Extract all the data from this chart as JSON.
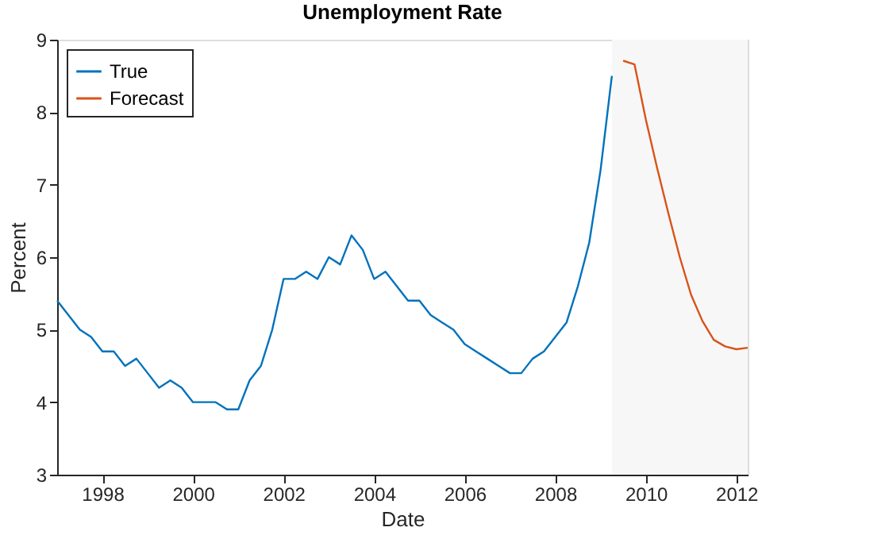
{
  "chart_data": {
    "type": "line",
    "title": "Unemployment Rate",
    "xlabel": "Date",
    "ylabel": "Percent",
    "xlim": [
      1997,
      2012.25
    ],
    "xticks": [
      1998,
      2000,
      2002,
      2004,
      2006,
      2008,
      2010,
      2012
    ],
    "ylim": [
      3,
      9
    ],
    "yticks": [
      3,
      4,
      5,
      6,
      7,
      8,
      9
    ],
    "grid": false,
    "legend": "top left",
    "line_style": "solid",
    "bands": [
      {
        "axis": "x",
        "from": 2009.25,
        "to": 2012.25,
        "color": "#f7f7f7"
      }
    ],
    "series": [
      {
        "name": "True",
        "color": "#0072bd",
        "x": [
          1997,
          1997.25,
          1997.5,
          1997.75,
          1998,
          1998.25,
          1998.5,
          1998.75,
          1999,
          1999.25,
          1999.5,
          1999.75,
          2000,
          2000.25,
          2000.5,
          2000.75,
          2001,
          2001.25,
          2001.5,
          2001.75,
          2002,
          2002.25,
          2002.5,
          2002.75,
          2003,
          2003.25,
          2003.5,
          2003.75,
          2004,
          2004.25,
          2004.5,
          2004.75,
          2005,
          2005.25,
          2005.5,
          2005.75,
          2006,
          2006.25,
          2006.5,
          2006.75,
          2007,
          2007.25,
          2007.5,
          2007.75,
          2008,
          2008.25,
          2008.5,
          2008.75,
          2009,
          2009.25
        ],
        "values": [
          5.4,
          5.2,
          5.0,
          4.9,
          4.7,
          4.7,
          4.5,
          4.6,
          4.4,
          4.2,
          4.3,
          4.2,
          4.0,
          4.0,
          4.0,
          3.9,
          3.9,
          4.3,
          4.5,
          5.0,
          5.7,
          5.7,
          5.8,
          5.7,
          6.0,
          5.9,
          6.3,
          6.1,
          5.7,
          5.8,
          5.6,
          5.4,
          5.4,
          5.2,
          5.1,
          5.0,
          4.8,
          4.7,
          4.6,
          4.5,
          4.4,
          4.4,
          4.6,
          4.7,
          4.9,
          5.1,
          5.6,
          6.2,
          7.2,
          8.5
        ]
      },
      {
        "name": "Forecast",
        "color": "#d95319",
        "x": [
          2009.5,
          2009.75,
          2010,
          2010.25,
          2010.5,
          2010.75,
          2011,
          2011.25,
          2011.5,
          2011.75,
          2012,
          2012.25
        ],
        "values": [
          8.71,
          8.66,
          7.9,
          7.23,
          6.6,
          6.0,
          5.48,
          5.12,
          4.86,
          4.77,
          4.73,
          4.75
        ]
      }
    ]
  }
}
